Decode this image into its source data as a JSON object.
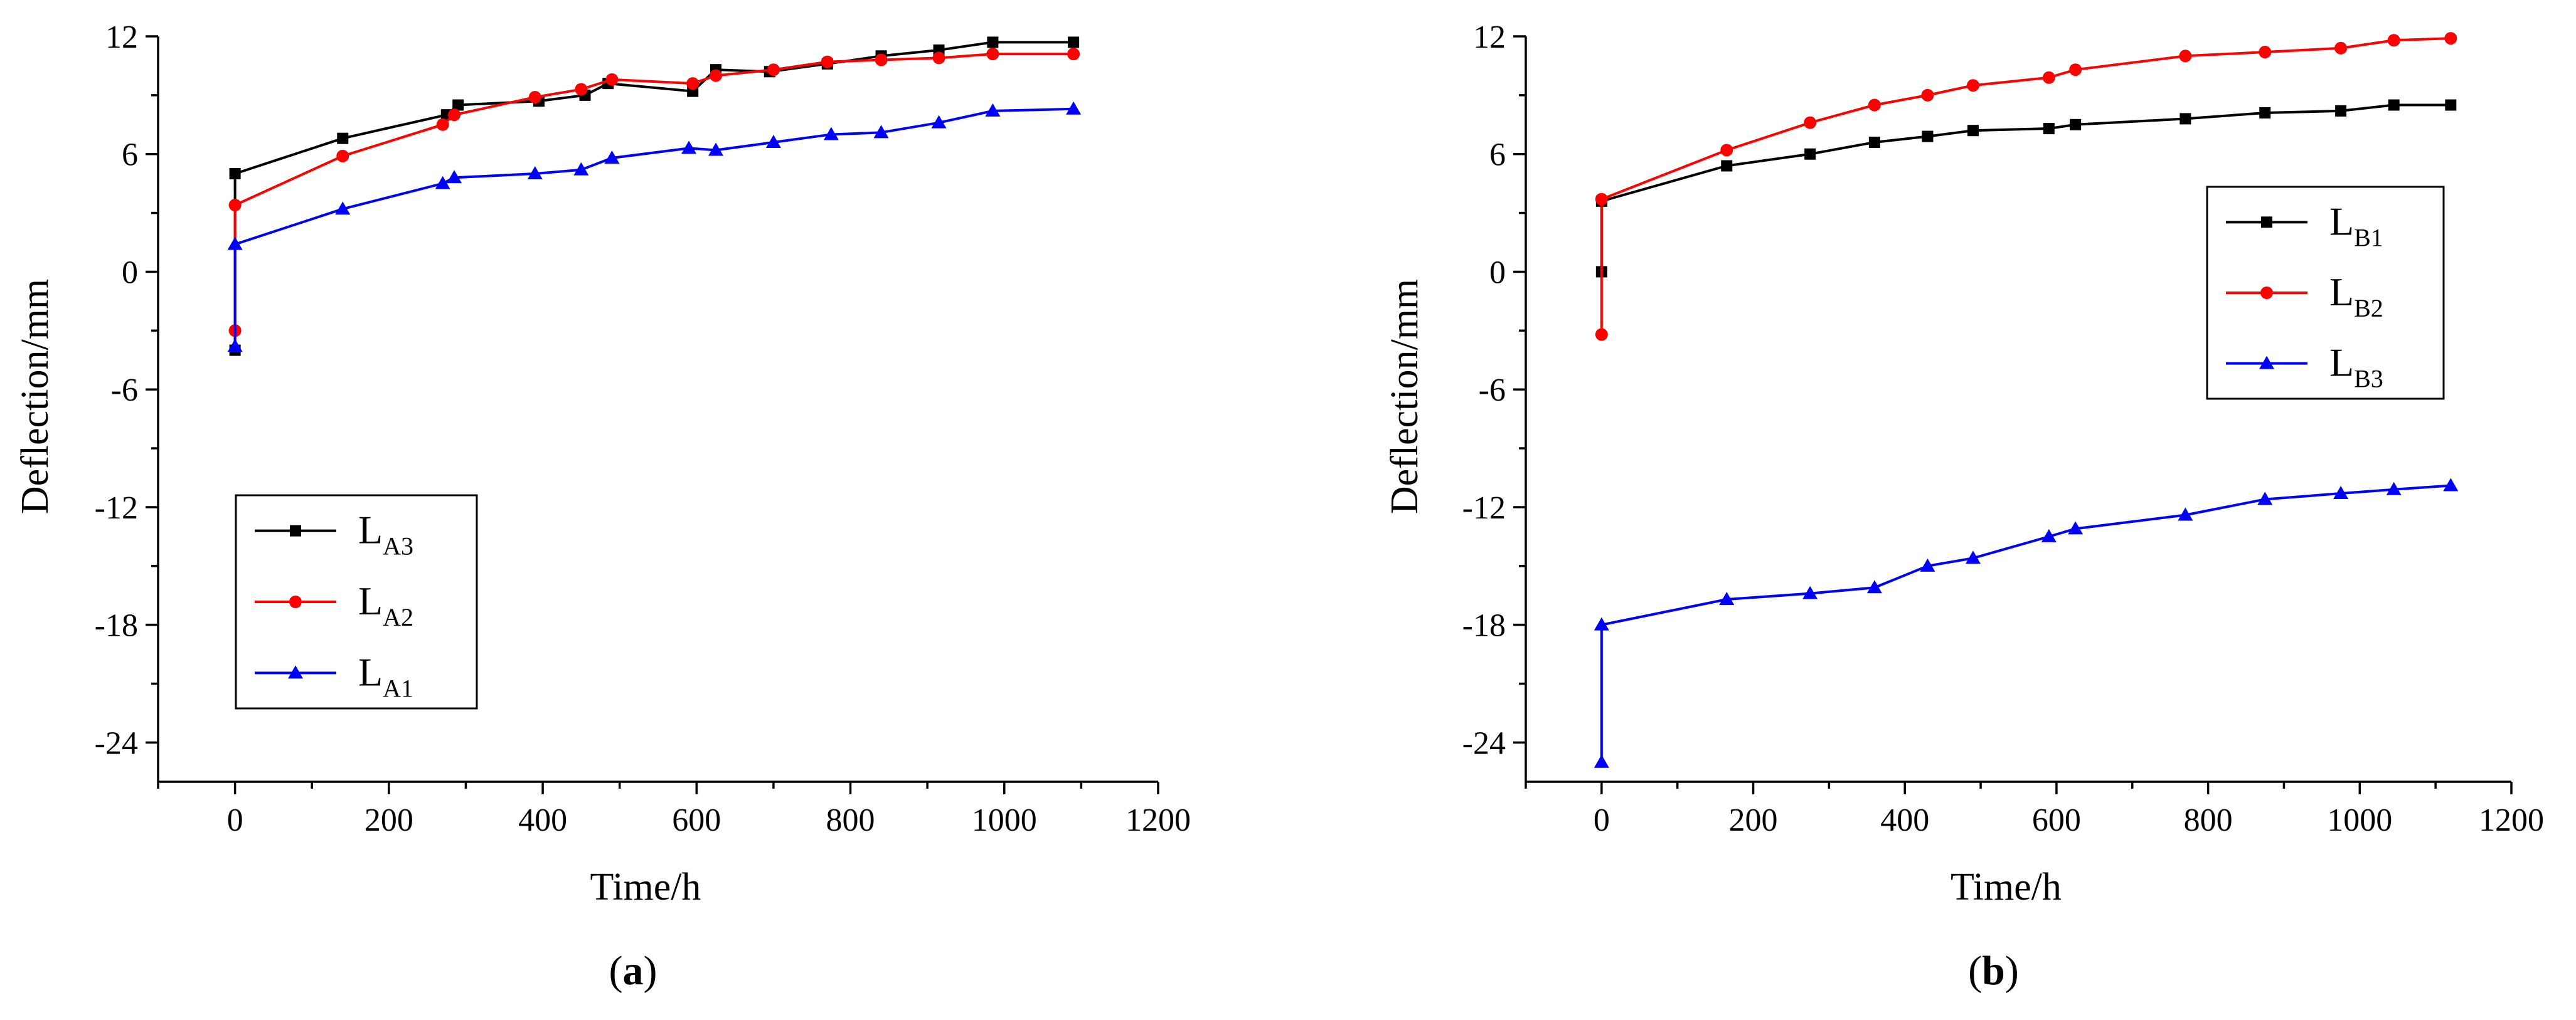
{
  "colors": {
    "black": "#000000",
    "red": "#ff0000",
    "blue": "#0000ff"
  },
  "chart_data": [
    {
      "type": "line",
      "panel_label": "a",
      "xlabel": "Time/h",
      "ylabel": "Deflection/mm",
      "xlim": [
        -100,
        1200
      ],
      "ylim": [
        -26,
        12
      ],
      "xticks": [
        0,
        200,
        400,
        600,
        800,
        1000,
        1200
      ],
      "yticks": [
        12,
        6,
        0,
        -6,
        -12,
        -18,
        -24
      ],
      "legend_position": "lower-left",
      "series": [
        {
          "name": "L",
          "sub": "A3",
          "color": "#000000",
          "marker": "square",
          "x": [
            0,
            0,
            140,
            275,
            290,
            395,
            455,
            485,
            595,
            625,
            695,
            770,
            840,
            915,
            985,
            1090
          ],
          "y": [
            -4,
            5,
            6.8,
            8,
            8.5,
            8.7,
            9,
            9.6,
            9.2,
            10.3,
            10.2,
            10.6,
            11,
            11.3,
            11.7,
            11.7
          ]
        },
        {
          "name": "L",
          "sub": "A2",
          "color": "#ff0000",
          "marker": "circle",
          "x": [
            0,
            0,
            140,
            270,
            285,
            390,
            450,
            490,
            595,
            625,
            700,
            770,
            840,
            915,
            985,
            1090
          ],
          "y": [
            -3,
            3.4,
            5.9,
            7.5,
            8,
            8.9,
            9.3,
            9.8,
            9.6,
            10,
            10.3,
            10.7,
            10.8,
            10.9,
            11.1,
            11.1
          ]
        },
        {
          "name": "L",
          "sub": "A1",
          "color": "#0000ff",
          "marker": "triangle",
          "x": [
            0,
            0,
            140,
            270,
            285,
            390,
            450,
            490,
            590,
            625,
            700,
            775,
            840,
            915,
            985,
            1090
          ],
          "y": [
            -3.8,
            1.4,
            3.2,
            4.5,
            4.8,
            5,
            5.2,
            5.8,
            6.3,
            6.2,
            6.6,
            7,
            7.1,
            7.6,
            8.2,
            8.3
          ]
        }
      ]
    },
    {
      "type": "line",
      "panel_label": "b",
      "xlabel": "Time/h",
      "ylabel": "Deflection/mm",
      "xlim": [
        -100,
        1200
      ],
      "ylim": [
        -26,
        12
      ],
      "xticks": [
        0,
        200,
        400,
        600,
        800,
        1000,
        1200
      ],
      "yticks": [
        12,
        6,
        0,
        -6,
        -12,
        -18,
        -24
      ],
      "legend_position": "upper-right",
      "series": [
        {
          "name": "L",
          "sub": "B1",
          "color": "#000000",
          "marker": "square",
          "x": [
            0,
            0,
            165,
            275,
            360,
            430,
            490,
            590,
            625,
            770,
            875,
            975,
            1045,
            1120
          ],
          "y": [
            0,
            3.6,
            5.4,
            6,
            6.6,
            6.9,
            7.2,
            7.3,
            7.5,
            7.8,
            8.1,
            8.2,
            8.5,
            8.5
          ]
        },
        {
          "name": "L",
          "sub": "B2",
          "color": "#ff0000",
          "marker": "circle",
          "x": [
            0,
            0,
            165,
            275,
            360,
            430,
            490,
            590,
            625,
            770,
            875,
            975,
            1045,
            1120
          ],
          "y": [
            -3.2,
            3.7,
            6.2,
            7.6,
            8.5,
            9,
            9.5,
            9.9,
            10.3,
            11,
            11.2,
            11.4,
            11.8,
            11.9
          ]
        },
        {
          "name": "L",
          "sub": "B3",
          "color": "#0000ff",
          "marker": "triangle",
          "x": [
            0,
            0,
            165,
            275,
            360,
            430,
            490,
            590,
            625,
            770,
            875,
            975,
            1045,
            1120
          ],
          "y": [
            -25,
            -18,
            -16.7,
            -16.4,
            -16.1,
            -15,
            -14.6,
            -13.5,
            -13.1,
            -12.4,
            -11.6,
            -11.3,
            -11.1,
            -10.9
          ]
        }
      ]
    }
  ]
}
